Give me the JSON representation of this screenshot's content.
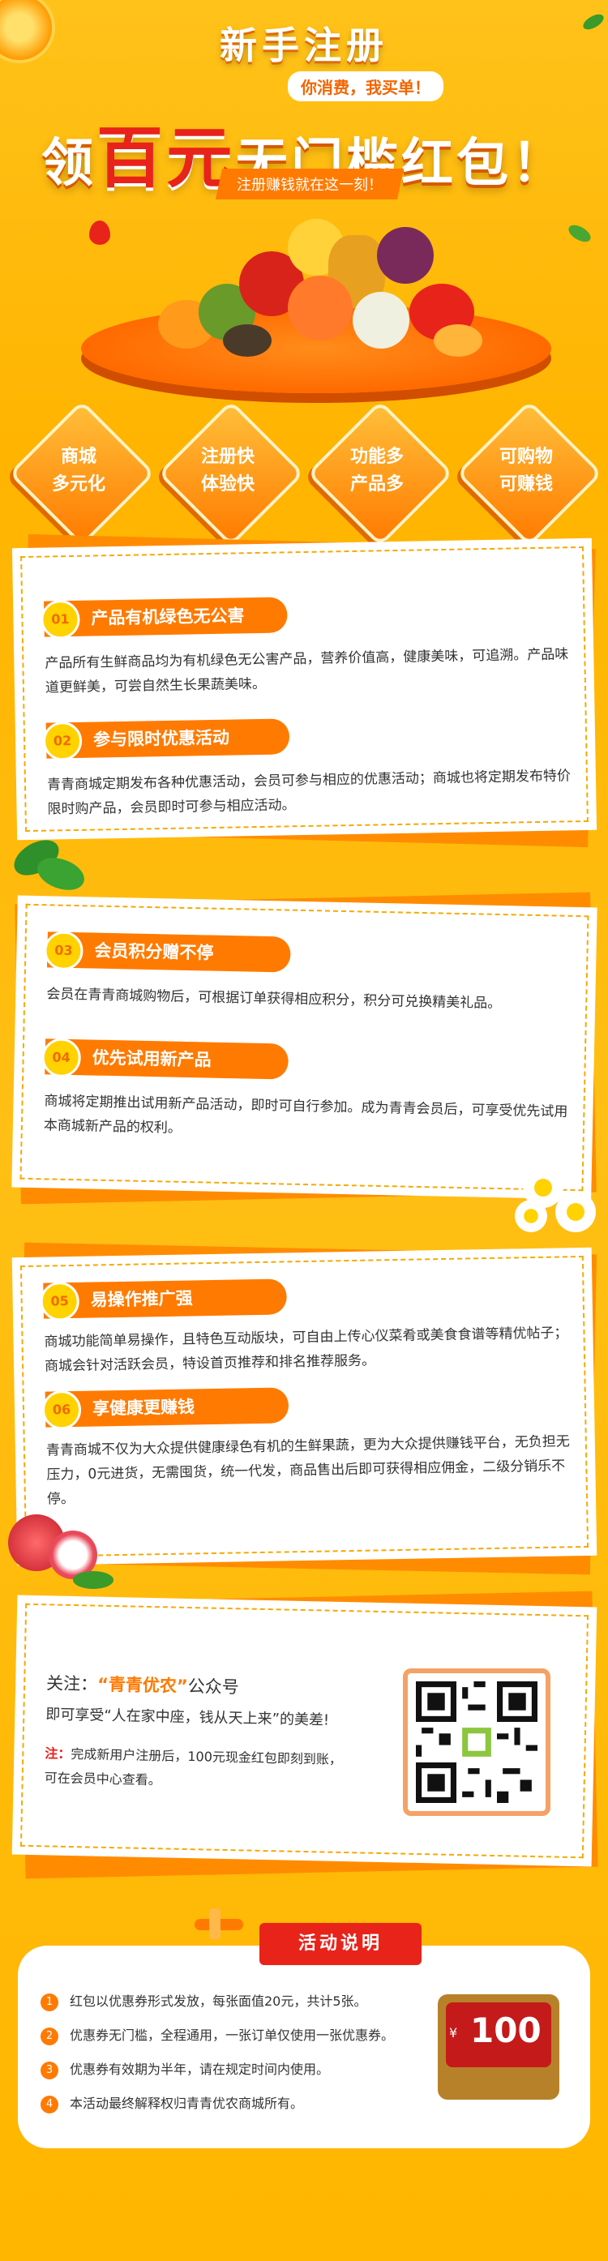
{
  "hero": {
    "title": "新手注册",
    "subtitle": "你消费，我买单！",
    "main_prefix": "领",
    "main_big": "百元",
    "main_suffix": "无门槛红包！",
    "tag": "注册赚钱就在这一刻！"
  },
  "features": [
    {
      "line1": "商城",
      "line2": "多元化"
    },
    {
      "line1": "注册快",
      "line2": "体验快"
    },
    {
      "line1": "功能多",
      "line2": "产品多"
    },
    {
      "line1": "可购物",
      "line2": "可赚钱"
    }
  ],
  "items": [
    {
      "num": "01",
      "title": "产品有机绿色无公害",
      "text": "产品所有生鲜商品均为有机绿色无公害产品，营养价值高，健康美味，可追溯。产品味道更鲜美，可尝自然生长果蔬美味。"
    },
    {
      "num": "02",
      "title": "参与限时优惠活动",
      "text": "青青商城定期发布各种优惠活动，会员可参与相应的优惠活动；商城也将定期发布特价限时购产品，会员即时可参与相应活动。"
    },
    {
      "num": "03",
      "title": "会员积分赠不停",
      "text": "会员在青青商城购物后，可根据订单获得相应积分，积分可兑换精美礼品。"
    },
    {
      "num": "04",
      "title": "优先试用新产品",
      "text": "商城将定期推出试用新产品活动，即时可自行参加。成为青青会员后，可享受优先试用本商城新产品的权利。"
    },
    {
      "num": "05",
      "title": "易操作推广强",
      "text": "商城功能简单易操作，且特色互动版块，可自由上传心仪菜肴或美食食谱等精优帖子；商城会针对活跃会员，特设首页推荐和排名推荐服务。"
    },
    {
      "num": "06",
      "title": "享健康更赚钱",
      "text": "青青商城不仅为大众提供健康绿色有机的生鲜果蔬，更为大众提供赚钱平台，无负担无压力，0元进货，无需囤货，统一代发，商品售出后即可获得相应佣金，二级分销乐不停。"
    }
  ],
  "follow": {
    "prefix": "关注：",
    "name": "“青青优农”",
    "suffix": "公众号",
    "line2": "即可享受“人在家中座，钱从天上来”的美差!",
    "note_label": "注：",
    "note_text": "完成新用户注册后，100元现金红包即刻到账，可在会员中心查看。"
  },
  "activity": {
    "title": "活动说明",
    "rules": [
      "红包以优惠券形式发放，每张面值20元，共计5张。",
      "优惠券无门槛，全程通用，一张订单仅使用一张优惠券。",
      "优惠券有效期为半年，请在规定时间内使用。",
      "本活动最终解释权归青青优农商城所有。"
    ],
    "ticket_currency": "¥",
    "ticket_value": "100"
  },
  "colors": {
    "brand_orange": "#ff7a00",
    "bg_yellow": "#ffb800",
    "accent_red": "#e8231a"
  }
}
